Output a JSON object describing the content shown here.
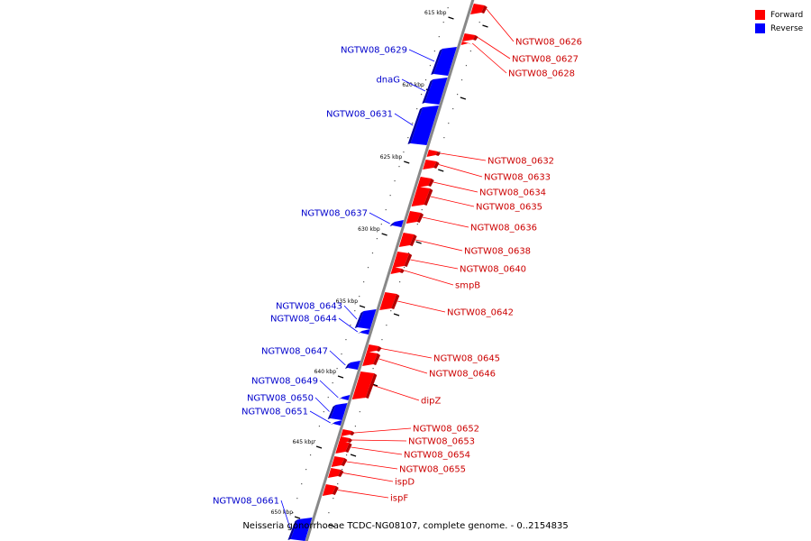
{
  "caption": "Neisseria gonorrhoeae TCDC-NG08107, complete genome. - 0..2154835",
  "legend": [
    {
      "label": "Forward",
      "color": "#ff0000"
    },
    {
      "label": "Reverse",
      "color": "#0000ff"
    }
  ],
  "colors": {
    "forward": "#ff0000",
    "forward_dark": "#b30000",
    "reverse": "#0000ff",
    "reverse_dark": "#0000a0",
    "backbone": "#888888",
    "forward_label": "#cc0000",
    "reverse_label": "#0000cc"
  },
  "scale": {
    "unit": "kbp",
    "ticks": [
      "615 kbp",
      "620 kbp",
      "625 kbp",
      "630 kbp",
      "635 kbp",
      "640 kbp",
      "645 kbp",
      "650 kbp"
    ]
  },
  "genes": [
    {
      "name": "NGTW08_0626",
      "strand": "forward"
    },
    {
      "name": "NGTW08_0627",
      "strand": "forward"
    },
    {
      "name": "NGTW08_0628",
      "strand": "forward"
    },
    {
      "name": "NGTW08_0629",
      "strand": "reverse"
    },
    {
      "name": "dnaG",
      "strand": "reverse"
    },
    {
      "name": "NGTW08_0631",
      "strand": "reverse"
    },
    {
      "name": "NGTW08_0632",
      "strand": "forward"
    },
    {
      "name": "NGTW08_0633",
      "strand": "forward"
    },
    {
      "name": "NGTW08_0634",
      "strand": "forward"
    },
    {
      "name": "NGTW08_0635",
      "strand": "forward"
    },
    {
      "name": "NGTW08_0637",
      "strand": "reverse"
    },
    {
      "name": "NGTW08_0636",
      "strand": "forward"
    },
    {
      "name": "NGTW08_0638",
      "strand": "forward"
    },
    {
      "name": "NGTW08_0640",
      "strand": "forward"
    },
    {
      "name": "smpB",
      "strand": "forward"
    },
    {
      "name": "NGTW08_0642",
      "strand": "forward"
    },
    {
      "name": "NGTW08_0643",
      "strand": "reverse"
    },
    {
      "name": "NGTW08_0644",
      "strand": "reverse"
    },
    {
      "name": "NGTW08_0647",
      "strand": "reverse"
    },
    {
      "name": "NGTW08_0645",
      "strand": "forward"
    },
    {
      "name": "NGTW08_0646",
      "strand": "forward"
    },
    {
      "name": "NGTW08_0649",
      "strand": "reverse"
    },
    {
      "name": "dipZ",
      "strand": "forward"
    },
    {
      "name": "NGTW08_0650",
      "strand": "reverse"
    },
    {
      "name": "NGTW08_0651",
      "strand": "reverse"
    },
    {
      "name": "NGTW08_0652",
      "strand": "forward"
    },
    {
      "name": "NGTW08_0653",
      "strand": "forward"
    },
    {
      "name": "NGTW08_0654",
      "strand": "forward"
    },
    {
      "name": "NGTW08_0655",
      "strand": "forward"
    },
    {
      "name": "ispD",
      "strand": "forward"
    },
    {
      "name": "ispF",
      "strand": "forward"
    },
    {
      "name": "NGTW08_0661",
      "strand": "reverse"
    }
  ]
}
